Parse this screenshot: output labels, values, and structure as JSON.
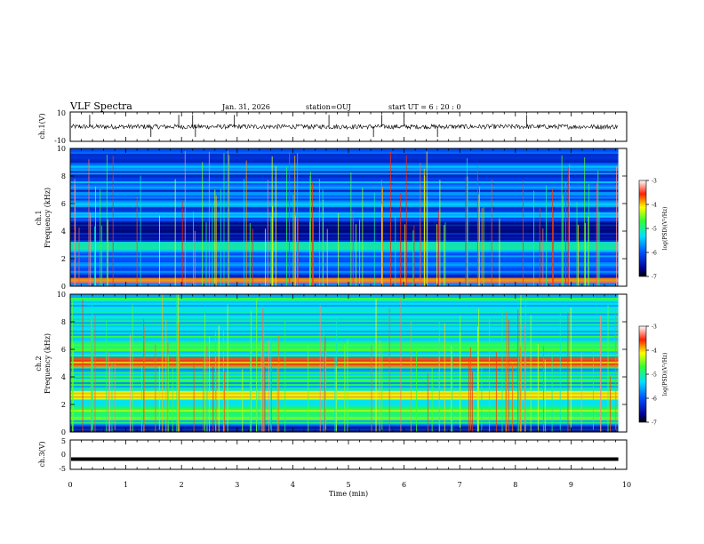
{
  "header": {
    "title": "VLF Spectra",
    "date": "Jan. 31, 2026",
    "station": "station=OUJ",
    "start_ut": "start  UT =   6 : 20 : 0"
  },
  "chart_data": [
    {
      "type": "line",
      "name": "ch1-waveform",
      "ylabel": "ch.1(V)",
      "ylim": [
        -10,
        10
      ],
      "yticks": [
        "10",
        "-10"
      ],
      "xlim": [
        0,
        10
      ],
      "baseline": 0,
      "note": "noisy waveform around 0 V with sparse spikes"
    },
    {
      "type": "heatmap",
      "name": "ch1-spectrogram",
      "ylabel": "ch.1\nFrequency (kHz)",
      "ylabel_line1": "ch.1",
      "ylabel_line2": "Frequency (kHz)",
      "ylim": [
        0,
        10
      ],
      "yticks": [
        "0",
        "2",
        "4",
        "6",
        "8",
        "10"
      ],
      "xlim": [
        0,
        9.85
      ],
      "colorbar": {
        "label": "log(PSD)(V²/Hz)",
        "range": [
          -7,
          -3
        ],
        "ticks": [
          "-3",
          "-4",
          "-5",
          "-6",
          "-7"
        ]
      },
      "bands_khz": [
        [
          0.3,
          0.6,
          -3.6
        ],
        [
          2.6,
          3.2,
          -5.0
        ],
        [
          3.4,
          4.6,
          -6.6
        ],
        [
          1.0,
          2.5,
          -5.8
        ]
      ],
      "background": -5.9
    },
    {
      "type": "heatmap",
      "name": "ch2-spectrogram",
      "ylabel_line1": "ch.2",
      "ylabel_line2": "Frequency (kHz)",
      "ylim": [
        0,
        10
      ],
      "yticks": [
        "0",
        "2",
        "4",
        "6",
        "8",
        "10"
      ],
      "xlim": [
        0,
        9.85
      ],
      "colorbar": {
        "label": "log(PSD)(V²/Hz)",
        "range": [
          -7,
          -3
        ],
        "ticks": [
          "-3",
          "-4",
          "-5",
          "-6",
          "-7"
        ]
      },
      "bands_khz": [
        [
          4.8,
          5.4,
          -3.8
        ],
        [
          2.4,
          3.0,
          -3.9
        ],
        [
          0.9,
          1.6,
          -4.6
        ],
        [
          0.0,
          0.5,
          -6.5
        ]
      ],
      "background": -5.2
    },
    {
      "type": "line",
      "name": "ch3-waveform",
      "ylabel": "ch.3(V)",
      "ylim": [
        -5,
        5
      ],
      "yticks": [
        "5",
        "0",
        "-5"
      ],
      "xlim": [
        0,
        9.85
      ],
      "baseline": -1.5,
      "note": "flat thick line near -1.5 V"
    }
  ],
  "time_axis": {
    "label": "Time (min)",
    "ticks": [
      "0",
      "1",
      "2",
      "3",
      "4",
      "5",
      "6",
      "7",
      "8",
      "9",
      "10"
    ],
    "range": [
      0,
      10
    ]
  }
}
